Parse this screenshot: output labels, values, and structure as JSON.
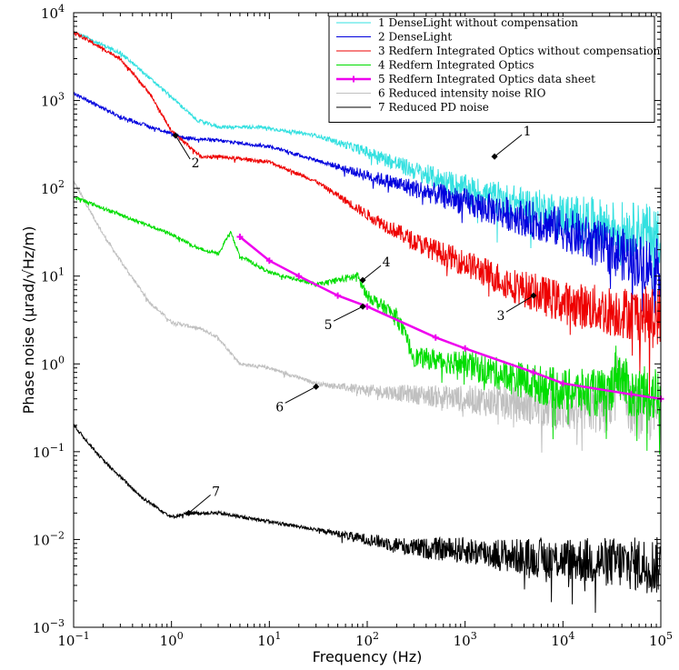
{
  "chart_data": {
    "type": "line",
    "xscale": "log",
    "yscale": "log",
    "xlim": [
      0.1,
      100000
    ],
    "ylim": [
      0.001,
      10000
    ],
    "xlabel": "Frequency (Hz)",
    "ylabel": "Phase noise (µrad/√Hz/m)",
    "x_ticks": [
      {
        "base": "10",
        "exp": "−1"
      },
      {
        "base": "10",
        "exp": "0"
      },
      {
        "base": "10",
        "exp": "1"
      },
      {
        "base": "10",
        "exp": "2"
      },
      {
        "base": "10",
        "exp": "3"
      },
      {
        "base": "10",
        "exp": "4"
      },
      {
        "base": "10",
        "exp": "5"
      }
    ],
    "y_ticks": [
      {
        "base": "10",
        "exp": "−3"
      },
      {
        "base": "10",
        "exp": "−2"
      },
      {
        "base": "10",
        "exp": "−1"
      },
      {
        "base": "10",
        "exp": "0"
      },
      {
        "base": "10",
        "exp": "1"
      },
      {
        "base": "10",
        "exp": "2"
      },
      {
        "base": "10",
        "exp": "3"
      },
      {
        "base": "10",
        "exp": "4"
      }
    ],
    "legend_position": "top-right",
    "series": [
      {
        "id": "1",
        "name": "1 DenseLight without compensation",
        "color": "#33e0e0",
        "style": "noisy",
        "x": [
          0.1,
          0.3,
          1,
          1.8,
          3,
          8,
          30,
          100,
          300,
          1000,
          3000,
          10000,
          30000,
          100000
        ],
        "y": [
          6000,
          3500,
          1100,
          600,
          500,
          500,
          400,
          260,
          160,
          100,
          70,
          50,
          38,
          30
        ]
      },
      {
        "id": "2",
        "name": "2 DenseLight",
        "color": "#0000dd",
        "style": "noisy",
        "x": [
          0.1,
          0.3,
          1,
          1.3,
          3,
          10,
          30,
          100,
          300,
          1000,
          3000,
          10000,
          30000,
          100000
        ],
        "y": [
          1200,
          650,
          420,
          380,
          350,
          300,
          210,
          140,
          100,
          70,
          50,
          35,
          20,
          12
        ]
      },
      {
        "id": "3",
        "name": "3 Redfern Integrated Optics without compensation",
        "color": "#ee0000",
        "style": "noisy",
        "x": [
          0.1,
          0.3,
          0.6,
          1,
          2,
          3,
          10,
          30,
          100,
          300,
          1000,
          3000,
          10000,
          30000,
          100000
        ],
        "y": [
          6000,
          3000,
          1200,
          450,
          230,
          230,
          200,
          120,
          50,
          25,
          14,
          8,
          5,
          4,
          3.5
        ]
      },
      {
        "id": "4",
        "name": "4 Redfern Integrated Optics",
        "color": "#00dd00",
        "style": "noisy",
        "x": [
          0.1,
          0.3,
          1,
          2,
          3,
          4,
          5,
          10,
          30,
          80,
          100,
          200,
          300,
          1000,
          3000,
          10000,
          30000,
          35000,
          50000,
          100000
        ],
        "y": [
          80,
          50,
          30,
          20,
          18,
          32,
          17,
          11,
          8,
          10,
          6,
          3.5,
          1.2,
          1.0,
          0.7,
          0.5,
          0.45,
          0.9,
          0.45,
          0.45
        ]
      },
      {
        "id": "5",
        "name": "5 Redfern Integrated Optics data sheet",
        "color": "#ee00ee",
        "style": "marker",
        "x": [
          5,
          10,
          20,
          50,
          100,
          500,
          1000,
          5000,
          10000,
          50000,
          100000
        ],
        "y": [
          28,
          15,
          10,
          6,
          4.5,
          2.0,
          1.5,
          0.8,
          0.6,
          0.45,
          0.4
        ]
      },
      {
        "id": "6",
        "name": "6 Reduced intensity noise RIO",
        "color": "#c0c0c0",
        "style": "noisy",
        "x": [
          0.1,
          0.2,
          0.3,
          0.6,
          1,
          2,
          3,
          5,
          10,
          30,
          100,
          300,
          1000,
          3000,
          10000,
          30000,
          35000,
          50000,
          100000
        ],
        "y": [
          120,
          30,
          15,
          5,
          3,
          2.5,
          2,
          1,
          0.9,
          0.6,
          0.5,
          0.45,
          0.4,
          0.35,
          0.3,
          0.3,
          0.8,
          0.3,
          0.25
        ]
      },
      {
        "id": "7",
        "name": "7 Reduced PD noise",
        "color": "#000000",
        "style": "noisy",
        "x": [
          0.1,
          0.2,
          0.5,
          1,
          1.5,
          3,
          10,
          30,
          100,
          300,
          1000,
          3000,
          10000,
          30000,
          100000
        ],
        "y": [
          0.2,
          0.08,
          0.03,
          0.018,
          0.02,
          0.02,
          0.016,
          0.013,
          0.01,
          0.008,
          0.0075,
          0.0065,
          0.006,
          0.0055,
          0.005
        ]
      }
    ],
    "annotations": [
      {
        "label": "1",
        "series": "1",
        "x": 2000,
        "y": 230
      },
      {
        "label": "2",
        "series": "2",
        "x": 1.1,
        "y": 400
      },
      {
        "label": "3",
        "series": "3",
        "x": 5000,
        "y": 6
      },
      {
        "label": "4",
        "series": "4",
        "x": 90,
        "y": 9
      },
      {
        "label": "5",
        "series": "5",
        "x": 90,
        "y": 4.5
      },
      {
        "label": "6",
        "series": "6",
        "x": 30,
        "y": 0.55
      },
      {
        "label": "7",
        "series": "7",
        "x": 1.5,
        "y": 0.02
      }
    ]
  }
}
